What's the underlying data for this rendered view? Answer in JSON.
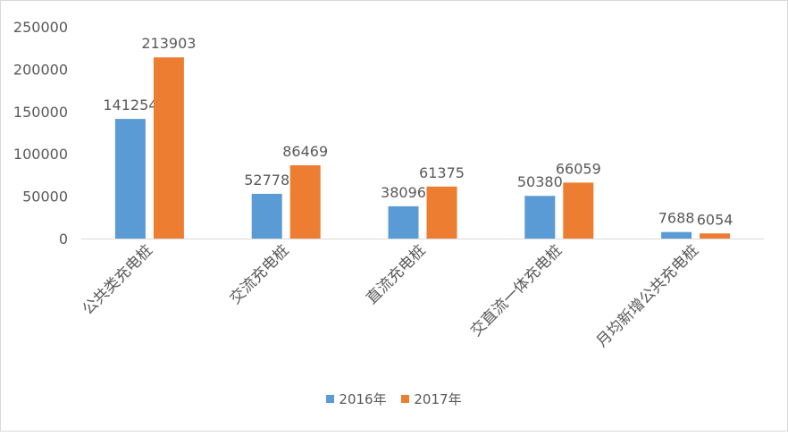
{
  "chart_data": {
    "type": "bar",
    "title": "",
    "xlabel": "",
    "ylabel": "",
    "categories": [
      "公共类充电桩",
      "交流充电桩",
      "直流充电桩",
      "交直流一体充电桩",
      "月均新增公共充电桩"
    ],
    "series": [
      {
        "name": "2016年",
        "color": "#5b9bd5",
        "values": [
          141254,
          52778,
          38096,
          50380,
          7688
        ]
      },
      {
        "name": "2017年",
        "color": "#ed7d31",
        "values": [
          213903,
          86469,
          61375,
          66059,
          6054
        ]
      }
    ],
    "ylim": [
      0,
      250000
    ],
    "yticks": [
      0,
      50000,
      100000,
      150000,
      200000,
      250000
    ],
    "grid": false,
    "legend_position": "bottom",
    "data_labels": true
  }
}
